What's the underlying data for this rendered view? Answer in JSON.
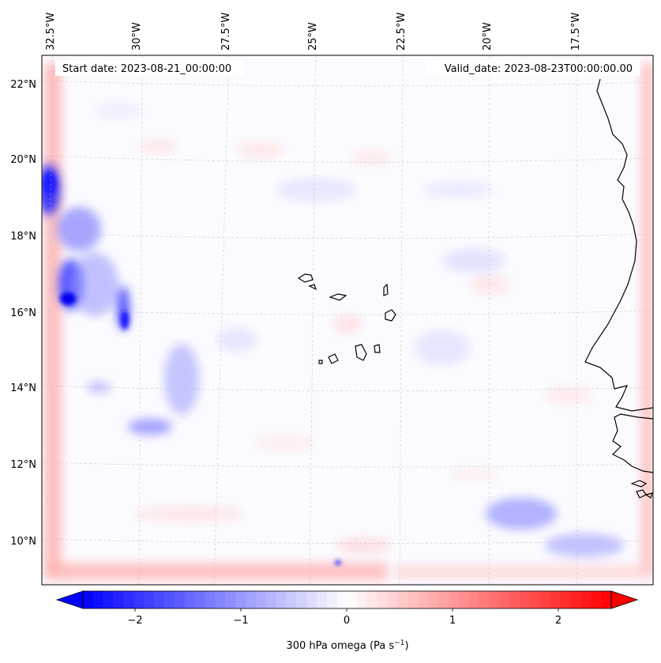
{
  "map": {
    "start_date_label": "Start date: 2023-08-21_00:00:00",
    "valid_date_label": "Valid_date: 2023-08-23T00:00:00.00",
    "lon_labels": [
      "32.5°W",
      "30°W",
      "27.5°W",
      "25°W",
      "22.5°W",
      "20°W",
      "17.5°W"
    ],
    "lat_labels": [
      "22°N",
      "20°N",
      "18°N",
      "16°N",
      "14°N",
      "12°N",
      "10°N"
    ],
    "field": "300 hPa omega",
    "colormap": "bwr",
    "colors": {
      "negative": "#0000ff",
      "zero": "#ffffff",
      "positive": "#ff0000",
      "coastline": "#000000",
      "gridline": "#bbbbbb"
    },
    "region": {
      "lon_range": [
        "33°W",
        "15.5°W"
      ],
      "lat_range": [
        "9°N",
        "23°N"
      ]
    }
  },
  "colorbar": {
    "label_main": "300 hPa omega (Pa s",
    "label_exp": "−1",
    "label_close": ")",
    "ticks": [
      "−2",
      "−1",
      "0",
      "1",
      "2"
    ],
    "range": [
      -2.6,
      2.6
    ],
    "extend": "both"
  }
}
